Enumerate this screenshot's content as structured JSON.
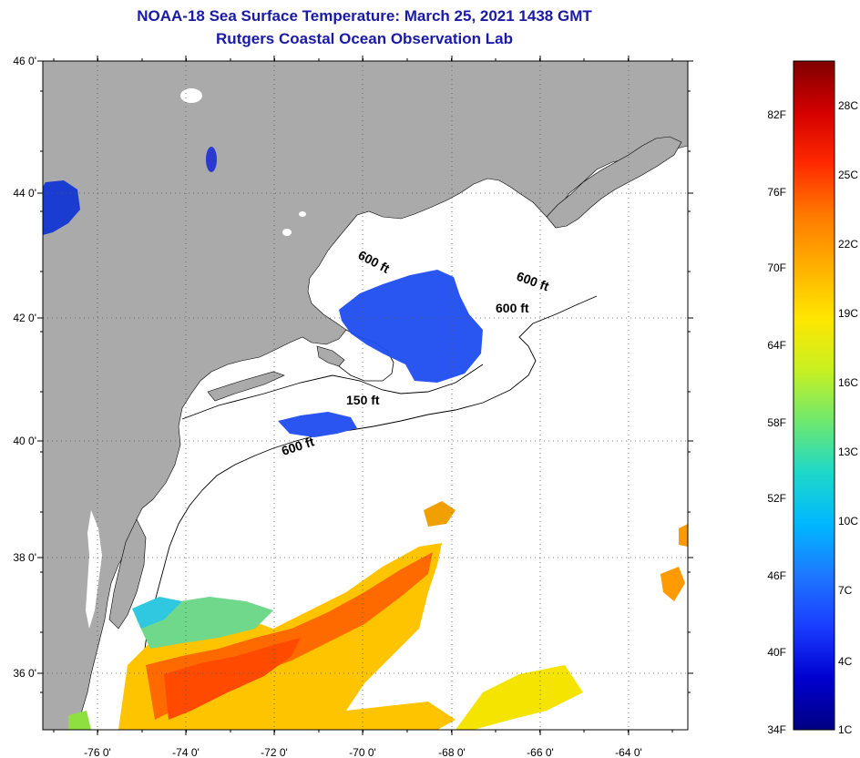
{
  "title": {
    "line1": "NOAA-18 Sea Surface Temperature:  March 25, 2021 1438 GMT",
    "line2": "Rutgers Coastal Ocean Observation Lab"
  },
  "map": {
    "lon_ticks": [
      "-76 0'",
      "-74 0'",
      "-72 0'",
      "-70 0'",
      "-68 0'",
      "-66 0'",
      "-64 0'"
    ],
    "lat_ticks": [
      "46 0'",
      "44 0'",
      "42 0'",
      "40 0'",
      "38 0'",
      "36 0'"
    ],
    "contour_labels": [
      "600 ft",
      "600 ft",
      "600 ft",
      "150 ft",
      "600 ft"
    ],
    "colors": {
      "land": "#aaaaaa",
      "ocean_nodata": "#ffffff",
      "grid": "#555555"
    }
  },
  "colorbar": {
    "fahrenheit_labels": [
      "82F",
      "76F",
      "70F",
      "64F",
      "58F",
      "52F",
      "46F",
      "40F",
      "34F"
    ],
    "celsius_labels": [
      "28C",
      "25C",
      "22C",
      "19C",
      "16C",
      "13C",
      "10C",
      "7C",
      "4C",
      "1C"
    ],
    "gradient_stops": [
      "#7f0000",
      "#d40000",
      "#ff2a00",
      "#ff7a00",
      "#ffb000",
      "#ffe600",
      "#c8f020",
      "#6fe86f",
      "#1ed8c8",
      "#00b8ff",
      "#1e78ff",
      "#1a3cff",
      "#0000d0",
      "#000080"
    ]
  }
}
